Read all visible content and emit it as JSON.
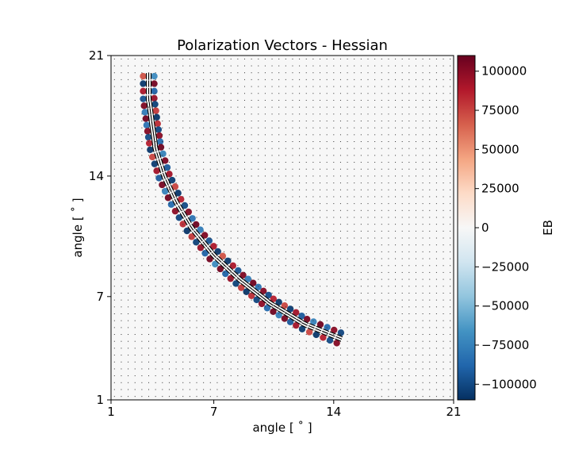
{
  "chart_data": {
    "type": "heatmap",
    "title": "Polarization Vectors - Hessian",
    "xlabel": "angle [$^\\circ$]",
    "ylabel": "angle [$^\\circ$]",
    "xlabel_display": "angle [ ˚ ]",
    "ylabel_display": "angle [ ˚ ]",
    "xlim": [
      1,
      21
    ],
    "ylim": [
      1,
      21
    ],
    "xticks": [
      1,
      7,
      14,
      21
    ],
    "yticks": [
      1,
      7,
      14,
      21
    ],
    "colorbar": {
      "label": "EB",
      "range": [
        -110000,
        110000
      ],
      "ticks": [
        100000,
        75000,
        50000,
        25000,
        0,
        -25000,
        -50000,
        -75000,
        -100000
      ],
      "tick_labels": [
        "100000",
        "75000",
        "50000",
        "25000",
        "0",
        "−25000",
        "−50000",
        "−75000",
        "−100000"
      ],
      "colormap": "RdBu_r",
      "colors": [
        "#053061",
        "#2166ac",
        "#4393c3",
        "#92c5de",
        "#d1e5f0",
        "#f7f7f7",
        "#fddbc7",
        "#f4a582",
        "#d6604d",
        "#b2182b",
        "#67001f"
      ]
    },
    "arc_centerline": [
      [
        3.2,
        19.8
      ],
      [
        3.2,
        18.5
      ],
      [
        3.4,
        17.0
      ],
      [
        3.6,
        15.6
      ],
      [
        4.1,
        14.0
      ],
      [
        4.8,
        12.5
      ],
      [
        5.7,
        11.0
      ],
      [
        7.0,
        9.4
      ],
      [
        8.5,
        8.0
      ],
      [
        10.3,
        6.6
      ],
      [
        12.3,
        5.4
      ],
      [
        14.3,
        4.6
      ]
    ],
    "arc_peak_value": 108000,
    "quiver_grid_spacing_deg": 0.4,
    "grid": false
  }
}
